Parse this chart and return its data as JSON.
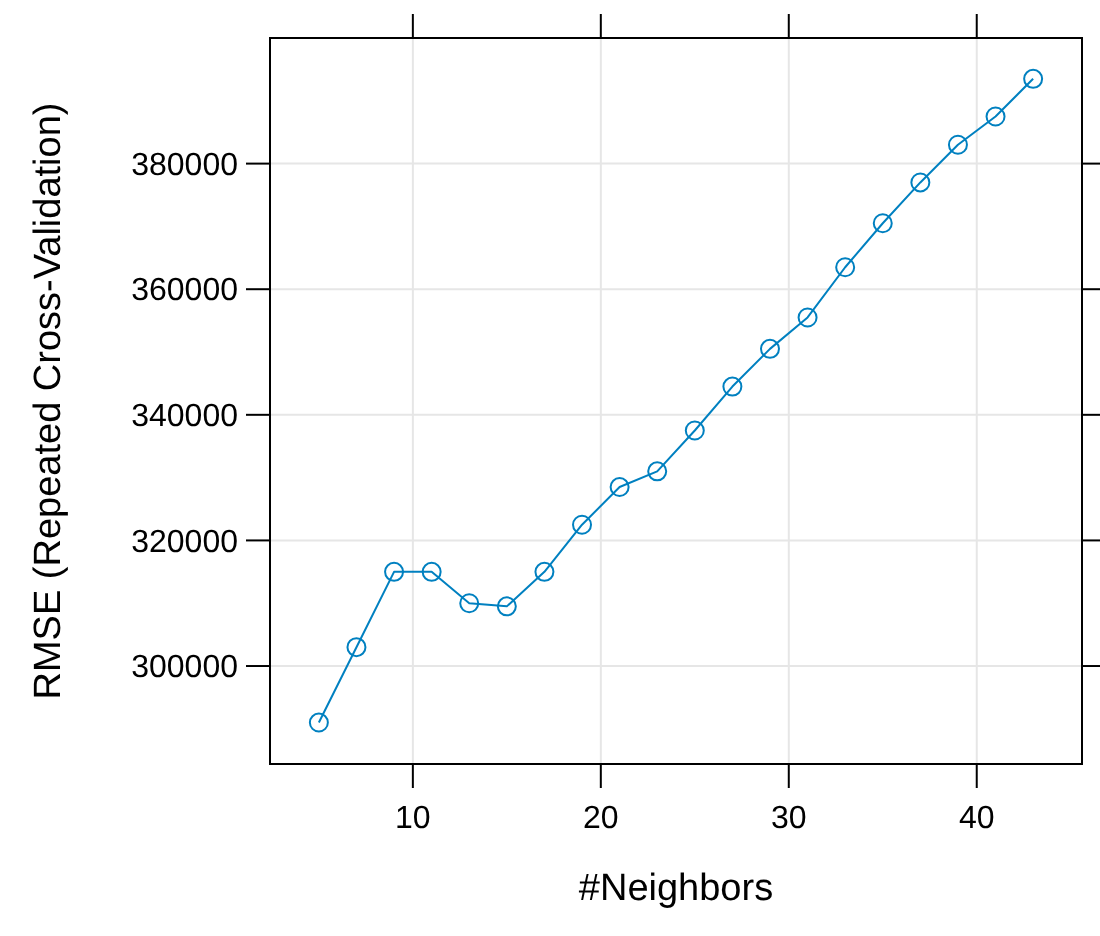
{
  "chart_data": {
    "type": "line",
    "xlabel": "#Neighbors",
    "ylabel": "RMSE (Repeated Cross-Validation)",
    "x": [
      5,
      7,
      9,
      11,
      13,
      15,
      17,
      19,
      21,
      23,
      25,
      27,
      29,
      31,
      33,
      35,
      37,
      39,
      41,
      43
    ],
    "series": [
      {
        "color": "#0080c0",
        "values": [
          291000,
          303000,
          315000,
          315000,
          310000,
          309500,
          315000,
          322500,
          328500,
          331000,
          337500,
          344500,
          350500,
          355500,
          363500,
          370500,
          377000,
          383000,
          387500,
          393500
        ]
      }
    ],
    "xlim": [
      2.4,
      45.6
    ],
    "ylim": [
      284400,
      400000
    ],
    "xticks": [
      10,
      20,
      30,
      40
    ],
    "yticks": [
      300000,
      320000,
      340000,
      360000,
      380000
    ],
    "grid": true,
    "marker": "circle",
    "line_style": "solid"
  }
}
